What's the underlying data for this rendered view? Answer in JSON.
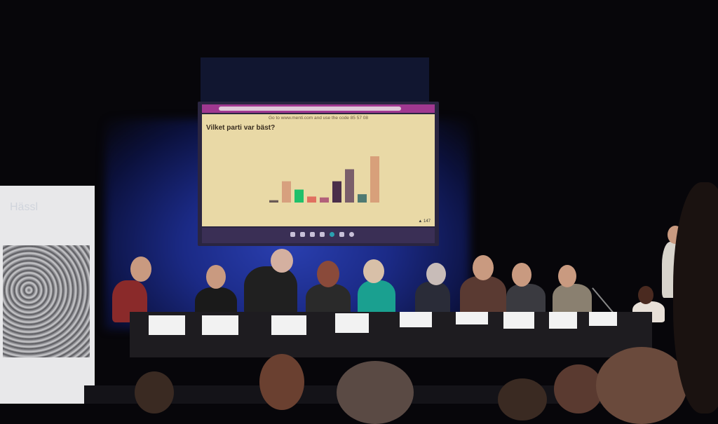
{
  "screen": {
    "code_line": "Go to www.menti.com and use the code 85 57 08",
    "question": "Vilket parti var bäst?",
    "votes": "147",
    "votes_icon": "person-icon",
    "bars": [
      {
        "value": 5,
        "color": "#6a5a55"
      },
      {
        "value": 46,
        "color": "#d7a07e"
      },
      {
        "value": 28,
        "color": "#1fc06a"
      },
      {
        "value": 13,
        "color": "#e07060"
      },
      {
        "value": 11,
        "color": "#b2607a"
      },
      {
        "value": 46,
        "color": "#4a2e4a"
      },
      {
        "value": 72,
        "color": "#7a5e6a"
      },
      {
        "value": 18,
        "color": "#4f7a72"
      },
      {
        "value": 100,
        "color": "#d8a07a"
      }
    ]
  },
  "banner": {
    "title": "Hässl"
  }
}
